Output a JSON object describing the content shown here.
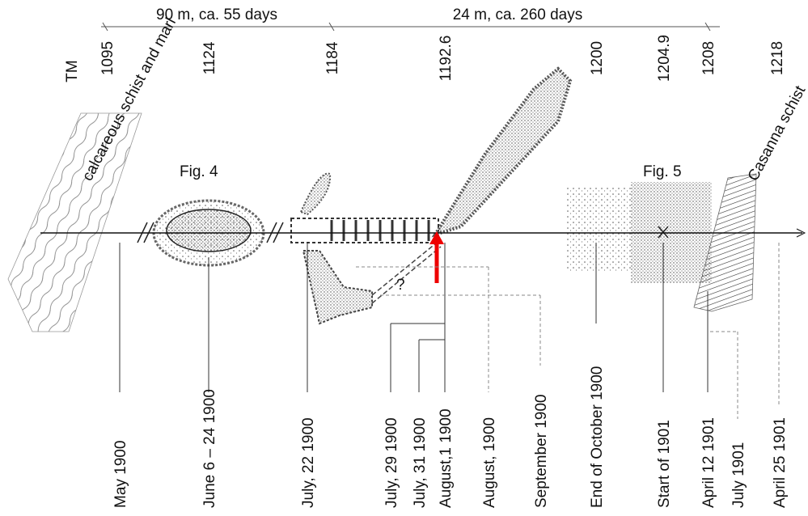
{
  "header": {
    "segments": [
      "90 m, ca. 55 days",
      "24 m, ca. 260 days"
    ]
  },
  "tm": {
    "label": "TM",
    "values": [
      "1095",
      "1124",
      "1184",
      "1192.6",
      "1200",
      "1204.9",
      "1208",
      "1218"
    ]
  },
  "rocks": {
    "left": "calcareous schist and marl",
    "right": "Casanna schist"
  },
  "figures": [
    "Fig. 4",
    "Fig. 5"
  ],
  "unknown": "?",
  "dates": [
    "May 1900",
    "June 6 – 24 1900",
    "July, 22 1900",
    "July, 29 1900",
    "July, 31 1900",
    "August,1 1900",
    "August, 1900",
    "September 1900",
    "End of October 1900",
    "Start of 1901",
    "April 12 1901",
    "July 1901",
    "April 25 1901"
  ]
}
